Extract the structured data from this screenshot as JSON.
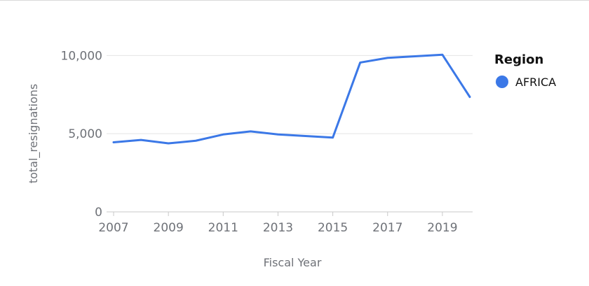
{
  "chart_data": {
    "type": "line",
    "xlabel": "Fiscal Year",
    "ylabel": "total_resignations",
    "x": [
      2007,
      2008,
      2009,
      2010,
      2011,
      2012,
      2013,
      2014,
      2015,
      2016,
      2017,
      2018,
      2019,
      2020
    ],
    "x_ticks": [
      "2007",
      "2009",
      "2011",
      "2013",
      "2015",
      "2017",
      "2019"
    ],
    "x_tick_values": [
      2007,
      2009,
      2011,
      2013,
      2015,
      2017,
      2019
    ],
    "y_ticks": [
      "0",
      "5,000",
      "10,000"
    ],
    "y_tick_values": [
      0,
      5000,
      10000
    ],
    "xlim": [
      2007,
      2020
    ],
    "ylim": [
      0,
      11000
    ],
    "grid": true,
    "legend": {
      "title": "Region",
      "placement": "right"
    },
    "series": [
      {
        "name": "AFRICA",
        "color": "#3b78e7",
        "values": [
          4450,
          4600,
          4380,
          4550,
          4950,
          5150,
          4950,
          4850,
          4750,
          9550,
          9850,
          9950,
          10050,
          7350
        ]
      }
    ]
  }
}
